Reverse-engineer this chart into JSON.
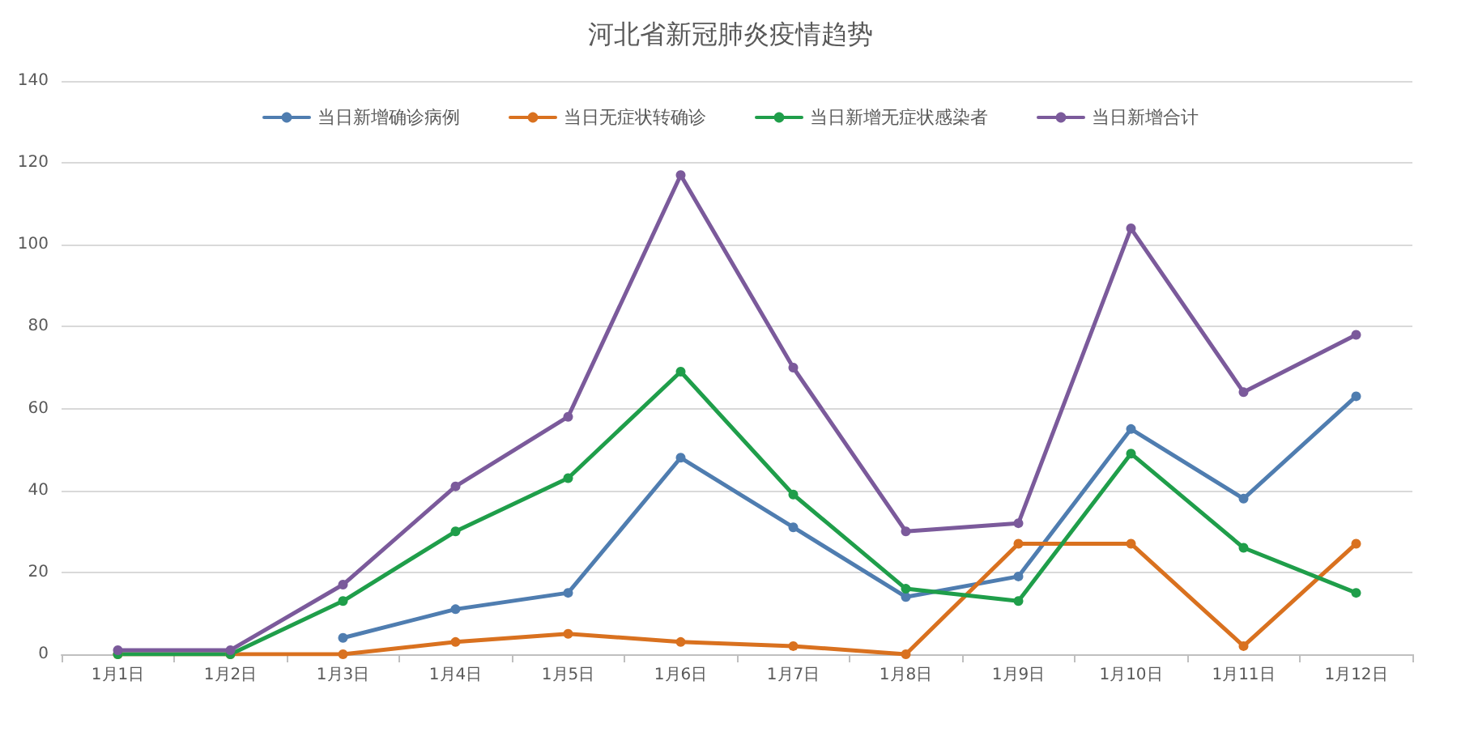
{
  "chart_data": {
    "type": "line",
    "title": "河北省新冠肺炎疫情趋势",
    "categories": [
      "1月1日",
      "1月2日",
      "1月3日",
      "1月4日",
      "1月5日",
      "1月6日",
      "1月7日",
      "1月8日",
      "1月9日",
      "1月10日",
      "1月11日",
      "1月12日"
    ],
    "series": [
      {
        "name": "当日新增确诊病例",
        "color": "#4f7db0",
        "values": [
          null,
          null,
          4,
          11,
          15,
          48,
          31,
          14,
          19,
          55,
          38,
          63
        ]
      },
      {
        "name": "当日无症状转确诊",
        "color": "#d9711f",
        "values": [
          0,
          0,
          0,
          3,
          5,
          3,
          2,
          0,
          27,
          27,
          2,
          27
        ]
      },
      {
        "name": "当日新增无症状感染者",
        "color": "#1f9e4a",
        "values": [
          0,
          0,
          13,
          30,
          43,
          69,
          39,
          16,
          13,
          49,
          26,
          15
        ]
      },
      {
        "name": "当日新增合计",
        "color": "#7b5a9b",
        "values": [
          1,
          1,
          17,
          41,
          58,
          117,
          70,
          30,
          32,
          104,
          64,
          78
        ]
      }
    ],
    "ylim": [
      0,
      140
    ],
    "yticks": [
      0,
      20,
      40,
      60,
      80,
      100,
      120,
      140
    ],
    "grid": "y",
    "legend": "top",
    "marker": "circle",
    "line_style": "solid"
  }
}
